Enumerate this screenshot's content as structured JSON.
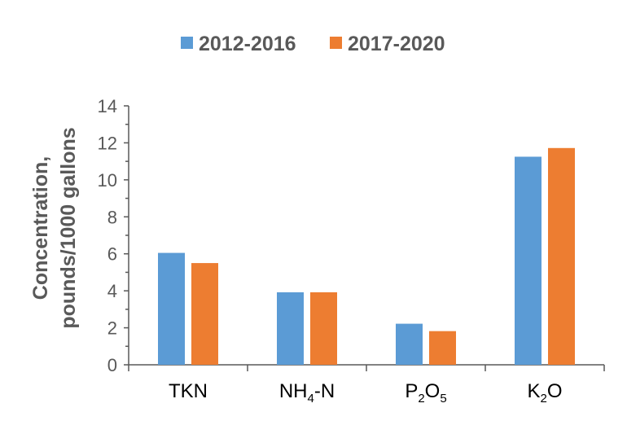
{
  "chart_data": {
    "type": "bar",
    "categories": [
      {
        "base": "TKN",
        "sub": "",
        "post": ""
      },
      {
        "base": "NH",
        "sub": "4",
        "post": "-N"
      },
      {
        "base": "P",
        "sub": "2",
        "post": "O",
        "sub2": "5"
      },
      {
        "base": "K",
        "sub": "2",
        "post": "O"
      }
    ],
    "series": [
      {
        "name": "2012-2016",
        "color": "#5B9BD5",
        "values": [
          6.05,
          3.92,
          2.22,
          11.25
        ]
      },
      {
        "name": "2017-2020",
        "color": "#ED7D31",
        "values": [
          5.5,
          3.92,
          1.82,
          11.72
        ]
      }
    ],
    "ylabel_line1": "Concentration,",
    "ylabel_line2": "pounds/1000 gallons",
    "ylim": [
      0,
      14
    ],
    "yticks": [
      "0",
      "2",
      "4",
      "6",
      "8",
      "10",
      "12",
      "14"
    ],
    "legend_position": "top",
    "grid": false
  }
}
